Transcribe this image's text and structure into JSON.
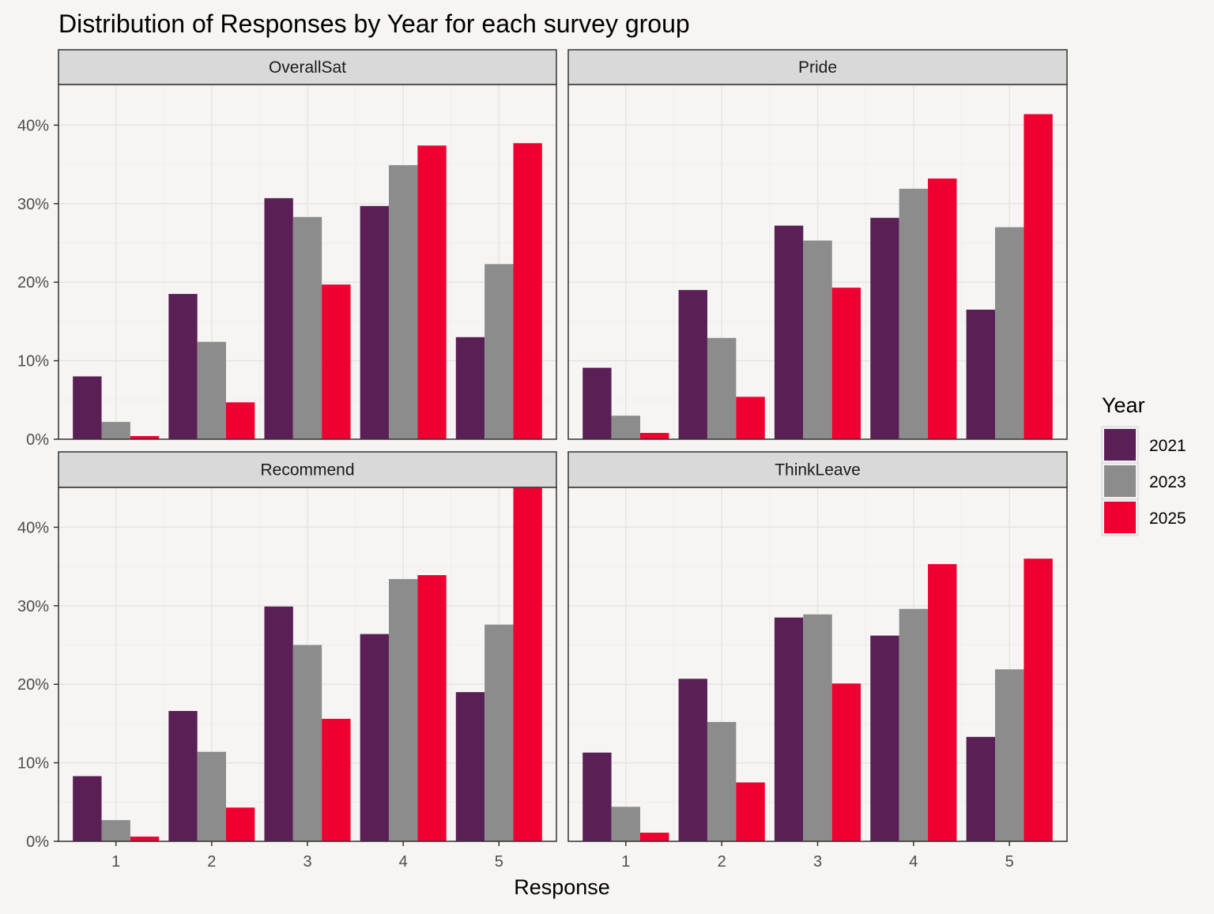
{
  "chart_data": {
    "type": "bar",
    "title": "Distribution of Responses by Year for each survey group",
    "xlabel": "Response",
    "ylabel": "",
    "categories": [
      "1",
      "2",
      "3",
      "4",
      "5"
    ],
    "ylim": [
      0,
      45
    ],
    "yticks": [
      "0%",
      "10%",
      "20%",
      "30%",
      "40%"
    ],
    "grid": true,
    "legend": {
      "title": "Year",
      "position": "right",
      "entries": [
        "2021",
        "2023",
        "2025"
      ]
    },
    "colors": {
      "2021": "#5a1f55",
      "2023": "#8c8c8c",
      "2025": "#ee0030"
    },
    "panels": [
      {
        "name": "OverallSat",
        "series": [
          {
            "name": "2021",
            "values": [
              8.0,
              18.5,
              30.7,
              29.7,
              13.0
            ]
          },
          {
            "name": "2023",
            "values": [
              2.2,
              12.4,
              28.3,
              34.9,
              22.3
            ]
          },
          {
            "name": "2025",
            "values": [
              0.4,
              4.7,
              19.7,
              37.4,
              37.7
            ]
          }
        ]
      },
      {
        "name": "Pride",
        "series": [
          {
            "name": "2021",
            "values": [
              9.1,
              19.0,
              27.2,
              28.2,
              16.5
            ]
          },
          {
            "name": "2023",
            "values": [
              3.0,
              12.9,
              25.3,
              31.9,
              27.0
            ]
          },
          {
            "name": "2025",
            "values": [
              0.8,
              5.4,
              19.3,
              33.2,
              41.4
            ]
          }
        ]
      },
      {
        "name": "Recommend",
        "series": [
          {
            "name": "2021",
            "values": [
              8.3,
              16.6,
              29.9,
              26.4,
              19.0
            ]
          },
          {
            "name": "2023",
            "values": [
              2.7,
              11.4,
              25.0,
              33.4,
              27.6
            ]
          },
          {
            "name": "2025",
            "values": [
              0.6,
              4.3,
              15.6,
              33.9,
              45.0
            ]
          }
        ]
      },
      {
        "name": "ThinkLeave",
        "series": [
          {
            "name": "2021",
            "values": [
              11.3,
              20.7,
              28.5,
              26.2,
              13.3
            ]
          },
          {
            "name": "2023",
            "values": [
              4.4,
              15.2,
              28.9,
              29.6,
              21.9
            ]
          },
          {
            "name": "2025",
            "values": [
              1.1,
              7.5,
              20.1,
              35.3,
              36.0
            ]
          }
        ]
      }
    ]
  }
}
